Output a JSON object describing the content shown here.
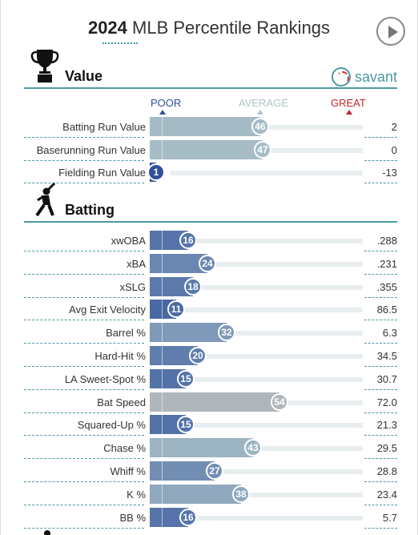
{
  "header": {
    "year": "2024",
    "title": "MLB Percentile Rankings"
  },
  "brand": {
    "name": "savant",
    "icon": "baseball-icon"
  },
  "scale": {
    "poor": "POOR",
    "average": "AVERAGE",
    "great": "GREAT"
  },
  "colors": {
    "accent": "#4a9aa5",
    "poor": "#2c4f9a",
    "average": "#aec4c9",
    "great": "#c0262a",
    "light_blue": "#7d94c8"
  },
  "sections": [
    {
      "title": "Value",
      "icon": "trophy-icon",
      "rows": [
        {
          "label": "Batting Run Value",
          "percentile": 46,
          "value": "2"
        },
        {
          "label": "Baserunning Run Value",
          "percentile": 47,
          "value": "0"
        },
        {
          "label": "Fielding Run Value",
          "percentile": 1,
          "value": "-13"
        }
      ]
    },
    {
      "title": "Batting",
      "icon": "batter-icon",
      "rows": [
        {
          "label": "xwOBA",
          "percentile": 16,
          "value": ".288"
        },
        {
          "label": "xBA",
          "percentile": 24,
          "value": ".231"
        },
        {
          "label": "xSLG",
          "percentile": 18,
          "value": ".355"
        },
        {
          "label": "Avg Exit Velocity",
          "percentile": 11,
          "value": "86.5"
        },
        {
          "label": "Barrel %",
          "percentile": 32,
          "value": "6.3"
        },
        {
          "label": "Hard-Hit %",
          "percentile": 20,
          "value": "34.5"
        },
        {
          "label": "LA Sweet-Spot %",
          "percentile": 15,
          "value": "30.7"
        },
        {
          "label": "Bat Speed",
          "percentile": 54,
          "value": "72.0"
        },
        {
          "label": "Squared-Up %",
          "percentile": 15,
          "value": "21.3"
        },
        {
          "label": "Chase %",
          "percentile": 43,
          "value": "29.5"
        },
        {
          "label": "Whiff %",
          "percentile": 27,
          "value": "28.8"
        },
        {
          "label": "K %",
          "percentile": 38,
          "value": "23.4"
        },
        {
          "label": "BB %",
          "percentile": 16,
          "value": "5.7"
        }
      ]
    }
  ]
}
